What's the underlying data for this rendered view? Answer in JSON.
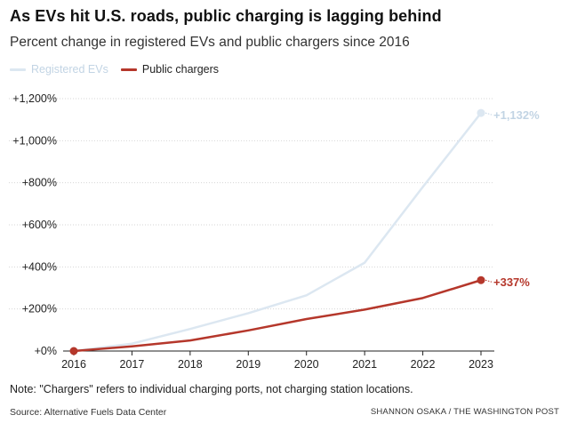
{
  "header": {
    "title": "As EVs hit U.S. roads, public charging is lagging behind",
    "subtitle": "Percent change in registered EVs and public chargers since 2016"
  },
  "legend": {
    "ev_label": "Registered EVs",
    "pc_label": "Public chargers"
  },
  "footer": {
    "note": "Note: \"Chargers\" refers to individual charging ports, not charging station locations.",
    "source": "Source: Alternative Fuels Data Center",
    "credit": "SHANNON OSAKA / THE WASHINGTON POST"
  },
  "colors": {
    "ev": "#dce7f1",
    "ev_label": "#c2d4e4",
    "chargers": "#b5372b",
    "grid": "#d6d6d6",
    "axis": "#222222"
  },
  "chart_data": {
    "type": "line",
    "x": [
      "2016",
      "2017",
      "2018",
      "2019",
      "2020",
      "2021",
      "2022",
      "2023"
    ],
    "series": [
      {
        "name": "Registered EVs",
        "values": [
          0,
          35,
          105,
          180,
          265,
          420,
          780,
          1132
        ],
        "end_label": "+1,132%"
      },
      {
        "name": "Public chargers",
        "values": [
          0,
          22,
          50,
          98,
          152,
          197,
          252,
          337
        ],
        "end_label": "+337%"
      }
    ],
    "ylim": [
      0,
      1200
    ],
    "yticks": [
      0,
      200,
      400,
      600,
      800,
      1000,
      1200
    ],
    "ytick_labels": [
      "+0%",
      "+200%",
      "+400%",
      "+600%",
      "+800%",
      "+1,000%",
      "+1,200%"
    ],
    "grid": true,
    "legend_position": "top-left"
  }
}
